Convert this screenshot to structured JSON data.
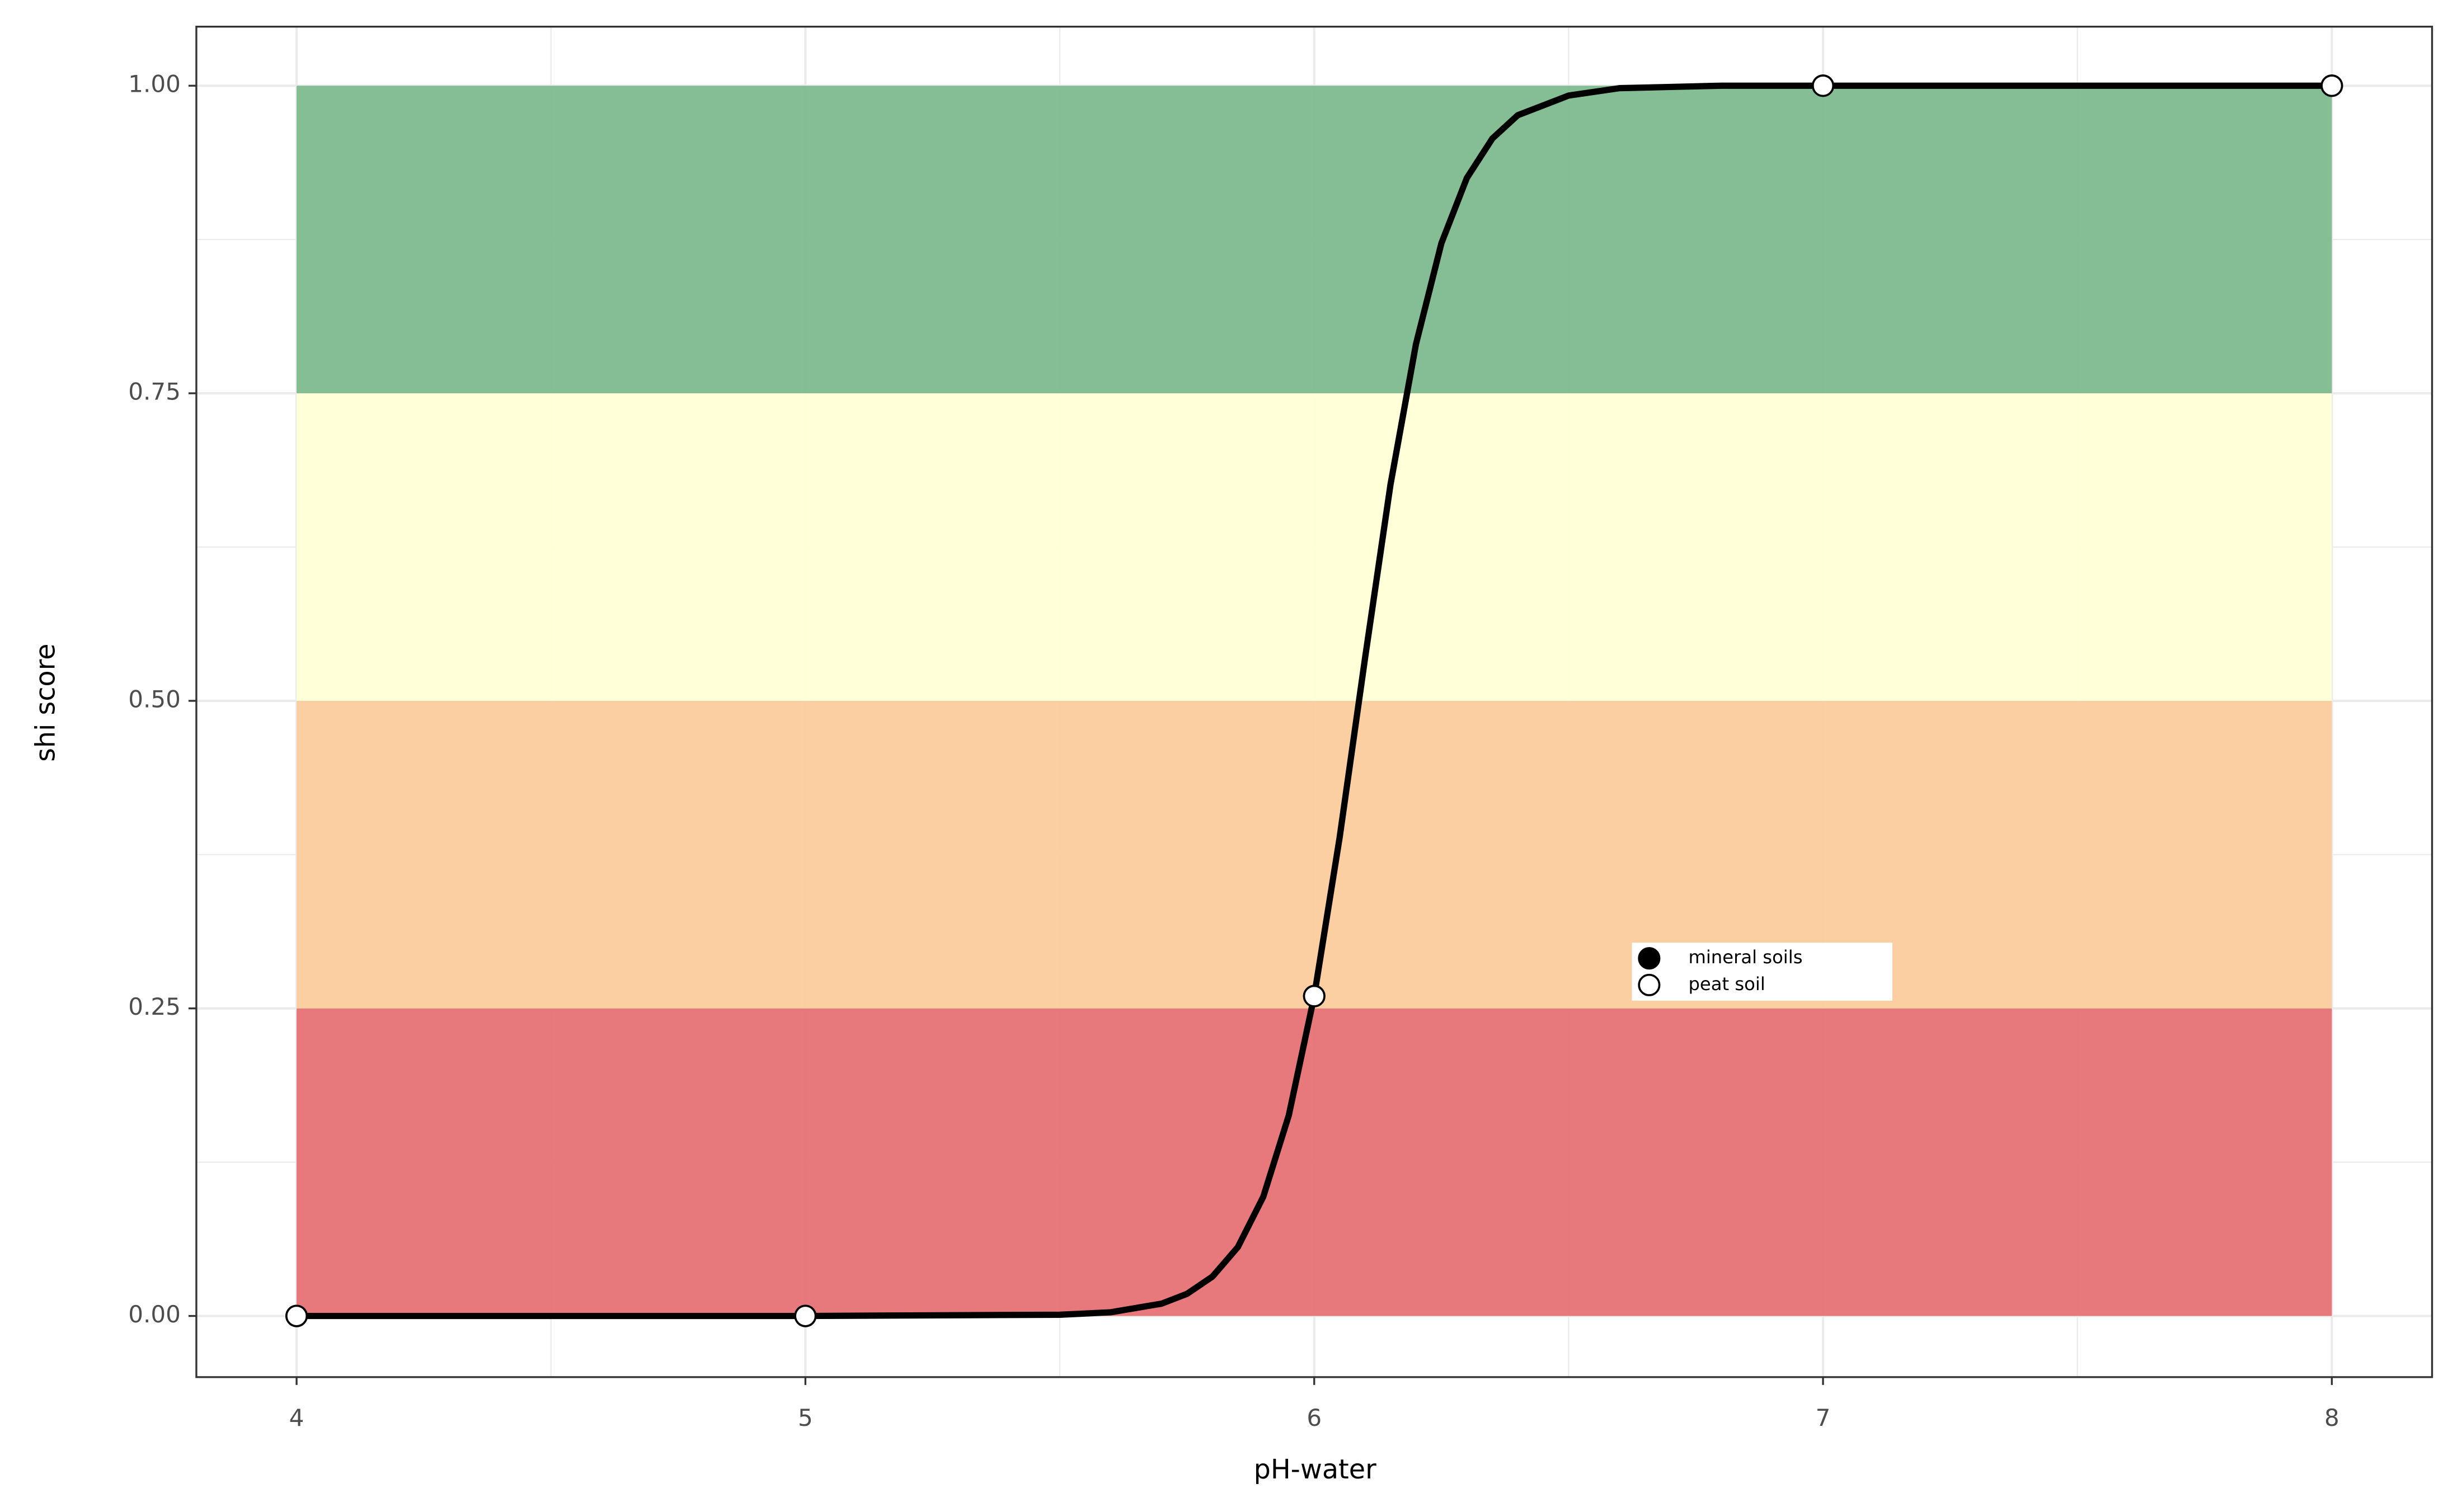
{
  "chart_data": {
    "type": "line",
    "x_label": "pH-water",
    "y_label": "shi score",
    "xlim": [
      3.803,
      8.197
    ],
    "ylim": [
      -0.0497,
      1.048
    ],
    "xticks": [
      4,
      5,
      6,
      7,
      8
    ],
    "yticks": [
      {
        "value": 0,
        "label": "0.00"
      },
      {
        "value": 0.25,
        "label": "0.25"
      },
      {
        "value": 0.5,
        "label": "0.50"
      },
      {
        "value": 0.75,
        "label": "0.75"
      },
      {
        "value": 1,
        "label": "1.00"
      }
    ],
    "x_minor_grid": [
      4.5,
      5.5,
      6.5,
      7.5
    ],
    "y_minor_grid": [
      0.125,
      0.375,
      0.625,
      0.875
    ],
    "grid": true,
    "bands": [
      {
        "xmin": 4,
        "xmax": 8,
        "ymin": 0,
        "ymax": 0.25,
        "color": "#e67275"
      },
      {
        "xmin": 4,
        "xmax": 8,
        "ymin": 0.25,
        "ymax": 0.5,
        "color": "#fccc9e"
      },
      {
        "xmin": 4,
        "xmax": 8,
        "ymin": 0.5,
        "ymax": 0.75,
        "color": "#ffffd6"
      },
      {
        "xmin": 4,
        "xmax": 8,
        "ymin": 0.75,
        "ymax": 1,
        "color": "#7eb98e"
      }
    ],
    "line": {
      "color": "#000000",
      "x": [
        4,
        4.5,
        5,
        5.5,
        5.6,
        5.7,
        5.75,
        5.8,
        5.85,
        5.9,
        5.95,
        6,
        6.05,
        6.1,
        6.15,
        6.2,
        6.25,
        6.3,
        6.35,
        6.4,
        6.5,
        6.6,
        6.7,
        6.8,
        7,
        7.5,
        8
      ],
      "values": [
        0,
        0,
        0,
        0.001,
        0.003,
        0.01,
        0.018,
        0.032,
        0.056,
        0.097,
        0.163,
        0.26,
        0.389,
        0.535,
        0.676,
        0.79,
        0.872,
        0.925,
        0.957,
        0.976,
        0.992,
        0.998,
        0.999,
        1,
        1,
        1,
        1
      ]
    },
    "series": [
      {
        "name": "mineral soils",
        "color": "#000000",
        "x": [
          4,
          5,
          6,
          7,
          8
        ],
        "values": [
          0,
          0,
          0.26,
          1,
          1
        ]
      },
      {
        "name": "peat soil",
        "color": "#ffffff",
        "x": [
          4,
          5,
          6,
          7,
          8
        ],
        "values": [
          0,
          0,
          0.26,
          1,
          1
        ]
      }
    ]
  }
}
